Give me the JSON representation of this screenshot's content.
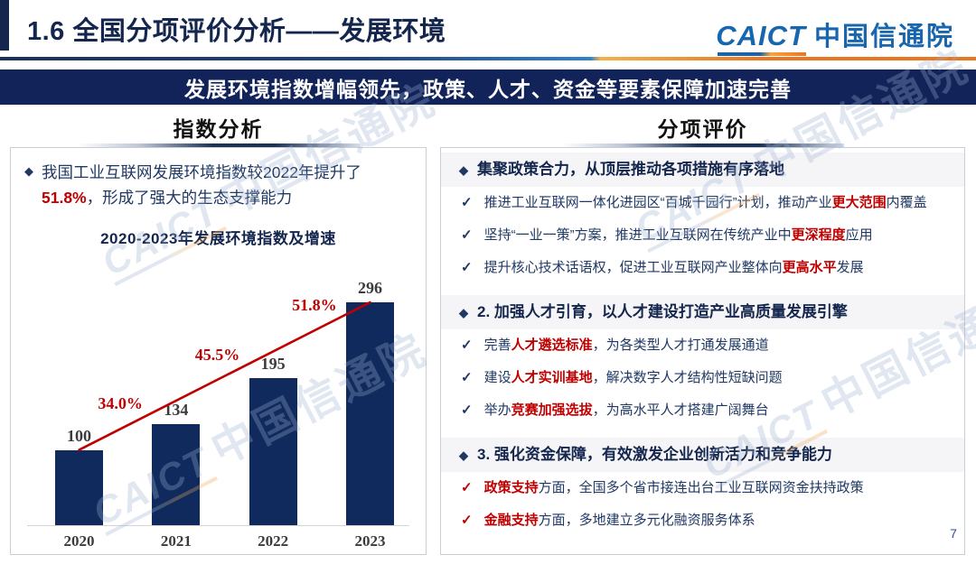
{
  "slide": {
    "title": "1.6  全国分项评价分析——发展环境",
    "banner": "发展环境指数增幅领先，政策、人才、资金等要素保障加速完善",
    "page_number": "7"
  },
  "logo": {
    "latin": "CAICT",
    "cn": "中国信通院"
  },
  "watermark": {
    "latin": "CAICT",
    "cn": "中国信通院"
  },
  "colors": {
    "navy": "#14264d",
    "text_navy": "#1f3864",
    "red": "#c00000",
    "bar_navy": "#102a5e",
    "logo_blue": "#1766ae",
    "orange": "#e87722",
    "banner_bg": "#12235a"
  },
  "left_panel": {
    "header": "指数分析",
    "summary_segments": [
      {
        "t": "我国工业互联网发展环境指数较2022年提升了"
      },
      {
        "t": "51.8%",
        "hl": true
      },
      {
        "t": "，形成了强大的生态支撑能力"
      }
    ]
  },
  "chart_data": {
    "type": "bar",
    "title": "2020-2023年发展环境指数及增速",
    "categories": [
      "2020",
      "2021",
      "2022",
      "2023"
    ],
    "values": [
      100,
      134,
      195,
      296
    ],
    "bar_labels": [
      "100",
      "134",
      "195",
      "296"
    ],
    "growth_labels": [
      "34.0%",
      "45.5%",
      "51.8%"
    ],
    "xlabel": "",
    "ylabel": "",
    "ylim": [
      0,
      310
    ],
    "grid": false,
    "legend": "none",
    "bar_color": "#102a5e",
    "line_color": "#c00000",
    "label_color": "#3b3b3b"
  },
  "right_panel": {
    "header": "分项评价",
    "sections": [
      {
        "heading": "集聚政策合力，从顶层推动各项措施有序落地",
        "check_style": "navy",
        "items": [
          [
            {
              "t": "推进工业互联网一体化进园区“百城千园行”计划，推动产业"
            },
            {
              "t": "更大范围",
              "hl": true
            },
            {
              "t": "内覆盖"
            }
          ],
          [
            {
              "t": "坚持“一业一策”方案，推进工业互联网在传统产业中"
            },
            {
              "t": "更深程度",
              "hl": true
            },
            {
              "t": "应用"
            }
          ],
          [
            {
              "t": "提升核心技术话语权，促进工业互联网产业整体向"
            },
            {
              "t": "更高水平",
              "hl": true
            },
            {
              "t": "发展"
            }
          ]
        ]
      },
      {
        "heading": "2. 加强人才引育，以人才建设打造产业高质量发展引擎",
        "check_style": "navy",
        "items": [
          [
            {
              "t": "完善"
            },
            {
              "t": "人才遴选标准",
              "hl": true
            },
            {
              "t": "，为各类型人才打通发展通道"
            }
          ],
          [
            {
              "t": "建设"
            },
            {
              "t": "人才实训基地",
              "hl": true
            },
            {
              "t": "，解决数字人才结构性短缺问题"
            }
          ],
          [
            {
              "t": "举办"
            },
            {
              "t": "竞赛加强选拔",
              "hl": true
            },
            {
              "t": "，为高水平人才搭建广阔舞台"
            }
          ]
        ]
      },
      {
        "heading": "3. 强化资金保障，有效激发企业创新活力和竞争能力",
        "check_style": "red",
        "items": [
          [
            {
              "t": "政策支持",
              "hl": true
            },
            {
              "t": "方面，全国多个省市接连出台工业互联网资金扶持政策"
            }
          ],
          [
            {
              "t": "金融支持",
              "hl": true
            },
            {
              "t": "方面，多地建立多元化融资服务体系"
            }
          ]
        ]
      }
    ]
  }
}
